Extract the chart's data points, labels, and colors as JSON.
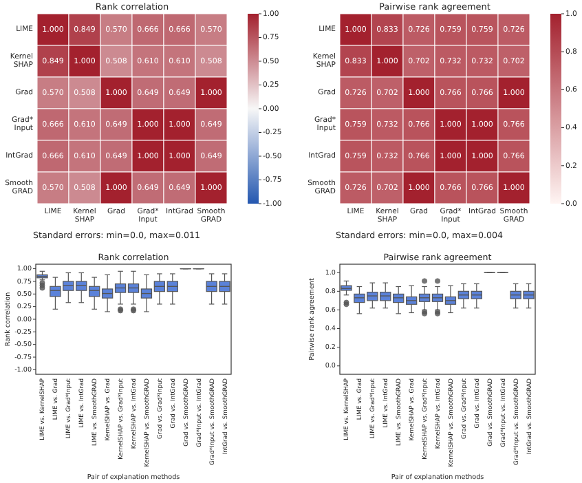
{
  "chart_data": [
    {
      "type": "heatmap",
      "title": "Rank correlation",
      "categories": [
        "LIME",
        "Kernel SHAP",
        "Grad",
        "Grad* Input",
        "IntGrad",
        "Smooth GRAD"
      ],
      "y_categories": [
        "LIME",
        "Kernel SHAP",
        "Grad",
        "Grad* Input",
        "IntGrad",
        "Smooth GRAD"
      ],
      "cells": [
        [
          1.0,
          0.849,
          0.57,
          0.666,
          0.666,
          0.57
        ],
        [
          0.849,
          1.0,
          0.508,
          0.61,
          0.61,
          0.508
        ],
        [
          0.57,
          0.508,
          1.0,
          0.649,
          0.649,
          1.0
        ],
        [
          0.666,
          0.61,
          0.649,
          1.0,
          1.0,
          0.649
        ],
        [
          0.666,
          0.61,
          0.649,
          1.0,
          1.0,
          0.649
        ],
        [
          0.57,
          0.508,
          1.0,
          0.649,
          0.649,
          1.0
        ]
      ],
      "cell_labels": [
        [
          "1.000",
          "0.849",
          "0.570",
          "0.666",
          "0.666",
          "0.570"
        ],
        [
          "0.849",
          "1.000",
          "0.508",
          "0.610",
          "0.610",
          "0.508"
        ],
        [
          "0.570",
          "0.508",
          "1.000",
          "0.649",
          "0.649",
          "1.000"
        ],
        [
          "0.666",
          "0.610",
          "0.649",
          "1.000",
          "1.000",
          "0.649"
        ],
        [
          "0.666",
          "0.610",
          "0.649",
          "1.000",
          "1.000",
          "0.649"
        ],
        [
          "0.570",
          "0.508",
          "1.000",
          "0.649",
          "0.649",
          "1.000"
        ]
      ],
      "clim": [
        -1,
        1
      ],
      "cticks": [
        {
          "value": -1,
          "label": "-1.00"
        },
        {
          "value": -0.75,
          "label": "-0.75"
        },
        {
          "value": -0.5,
          "label": "-0.50"
        },
        {
          "value": -0.25,
          "label": "-0.25"
        },
        {
          "value": 0,
          "label": "0.00"
        },
        {
          "value": 0.25,
          "label": "0.25"
        },
        {
          "value": 0.5,
          "label": "0.50"
        },
        {
          "value": 0.75,
          "label": "0.75"
        },
        {
          "value": 1,
          "label": "1.00"
        }
      ],
      "annotations": [
        "Standard errors: min=0.0, max=0.011"
      ]
    },
    {
      "type": "heatmap",
      "title": "Pairwise rank agreement",
      "categories": [
        "LIME",
        "Kernel SHAP",
        "Grad",
        "Grad* Input",
        "IntGrad",
        "Smooth GRAD"
      ],
      "y_categories": [
        "LIME",
        "Kernel SHAP",
        "Grad",
        "Grad* Input",
        "IntGrad",
        "Smooth GRAD"
      ],
      "cells": [
        [
          1.0,
          0.833,
          0.726,
          0.759,
          0.759,
          0.726
        ],
        [
          0.833,
          1.0,
          0.702,
          0.732,
          0.732,
          0.702
        ],
        [
          0.726,
          0.702,
          1.0,
          0.766,
          0.766,
          1.0
        ],
        [
          0.759,
          0.732,
          0.766,
          1.0,
          1.0,
          0.766
        ],
        [
          0.759,
          0.732,
          0.766,
          1.0,
          1.0,
          0.766
        ],
        [
          0.726,
          0.702,
          1.0,
          0.766,
          0.766,
          1.0
        ]
      ],
      "cell_labels": [
        [
          "1.000",
          "0.833",
          "0.726",
          "0.759",
          "0.759",
          "0.726"
        ],
        [
          "0.833",
          "1.000",
          "0.702",
          "0.732",
          "0.732",
          "0.702"
        ],
        [
          "0.726",
          "0.702",
          "1.000",
          "0.766",
          "0.766",
          "1.000"
        ],
        [
          "0.759",
          "0.732",
          "0.766",
          "1.000",
          "1.000",
          "0.766"
        ],
        [
          "0.759",
          "0.732",
          "0.766",
          "1.000",
          "1.000",
          "0.766"
        ],
        [
          "0.726",
          "0.702",
          "1.000",
          "0.766",
          "0.766",
          "1.000"
        ]
      ],
      "clim": [
        0,
        1
      ],
      "cticks": [
        {
          "value": 0,
          "label": "0.0"
        },
        {
          "value": 0.2,
          "label": "0.2"
        },
        {
          "value": 0.4,
          "label": "0.4"
        },
        {
          "value": 0.6,
          "label": "0.6"
        },
        {
          "value": 0.8,
          "label": "0.8"
        },
        {
          "value": 1,
          "label": "1.0"
        }
      ],
      "annotations": [
        "Standard errors: min=0.0, max=0.004"
      ]
    },
    {
      "type": "box",
      "title": "Rank correlation",
      "xlabel": "Pair of explanation methods",
      "ylabel": "Rank correlation",
      "color": "#5b82d9",
      "categories": [
        "LIME vs. KernelSHAP",
        "LIME vs. Grad",
        "LIME vs. Grad*Input",
        "LIME vs. IntGrad",
        "LIME vs. SmoothGRAD",
        "KernelSHAP vs. Grad",
        "KernelSHAP vs. Grad*Input",
        "KernelSHAP vs. IntGrad",
        "KernelSHAP vs. SmoothGRAD",
        "Grad vs. Grad*Input",
        "Grad vs. IntGrad",
        "Grad vs. SmoothGRAD",
        "Grad*Input vs. IntGrad",
        "Grad*Input vs. SmoothGRAD",
        "IntGrad vs. SmoothGRAD"
      ],
      "boxes": [
        {
          "low": 0.78,
          "q1": 0.82,
          "median": 0.85,
          "q3": 0.88,
          "high": 0.95,
          "outliers": [
            0.72,
            0.67,
            0.62
          ]
        },
        {
          "low": 0.2,
          "q1": 0.45,
          "median": 0.57,
          "q3": 0.65,
          "high": 0.83
        },
        {
          "low": 0.33,
          "q1": 0.57,
          "median": 0.67,
          "q3": 0.75,
          "high": 0.92
        },
        {
          "low": 0.33,
          "q1": 0.57,
          "median": 0.67,
          "q3": 0.75,
          "high": 0.92
        },
        {
          "low": 0.2,
          "q1": 0.45,
          "median": 0.57,
          "q3": 0.65,
          "high": 0.83
        },
        {
          "low": 0.15,
          "q1": 0.42,
          "median": 0.51,
          "q3": 0.6,
          "high": 0.88
        },
        {
          "low": 0.3,
          "q1": 0.53,
          "median": 0.62,
          "q3": 0.7,
          "high": 0.95,
          "outliers": [
            0.2,
            0.17
          ]
        },
        {
          "low": 0.3,
          "q1": 0.53,
          "median": 0.62,
          "q3": 0.7,
          "high": 0.95,
          "outliers": [
            0.2,
            0.17
          ]
        },
        {
          "low": 0.15,
          "q1": 0.42,
          "median": 0.51,
          "q3": 0.6,
          "high": 0.88
        },
        {
          "low": 0.3,
          "q1": 0.55,
          "median": 0.65,
          "q3": 0.75,
          "high": 0.9
        },
        {
          "low": 0.3,
          "q1": 0.55,
          "median": 0.65,
          "q3": 0.75,
          "high": 0.9
        },
        {
          "low": 1.0,
          "q1": 1.0,
          "median": 1.0,
          "q3": 1.0,
          "high": 1.0
        },
        {
          "low": 1.0,
          "q1": 1.0,
          "median": 1.0,
          "q3": 1.0,
          "high": 1.0
        },
        {
          "low": 0.3,
          "q1": 0.55,
          "median": 0.65,
          "q3": 0.75,
          "high": 0.9
        },
        {
          "low": 0.3,
          "q1": 0.55,
          "median": 0.65,
          "q3": 0.75,
          "high": 0.9
        }
      ],
      "ylim": [
        -1.09,
        1.09
      ],
      "yticks": [
        {
          "value": -1,
          "label": "-1.00"
        },
        {
          "value": -0.75,
          "label": "-0.75"
        },
        {
          "value": -0.5,
          "label": "-0.50"
        },
        {
          "value": -0.25,
          "label": "-0.25"
        },
        {
          "value": 0,
          "label": "0.00"
        },
        {
          "value": 0.25,
          "label": "0.25"
        },
        {
          "value": 0.5,
          "label": "0.50"
        },
        {
          "value": 0.75,
          "label": "0.75"
        },
        {
          "value": 1,
          "label": "1.00"
        }
      ]
    },
    {
      "type": "box",
      "title": "Pairwise rank agreement",
      "xlabel": "Pair of explanation methods",
      "ylabel": "Pairwise rank agreement",
      "color": "#5b82d9",
      "categories": [
        "LIME vs. KernelSHAP",
        "LIME vs. Grad",
        "LIME vs. Grad*Input",
        "LIME vs. IntGrad",
        "LIME vs. SmoothGRAD",
        "KernelSHAP vs. Grad",
        "KernelSHAP vs. Grad*Input",
        "KernelSHAP vs. IntGrad",
        "KernelSHAP vs. SmoothGRAD",
        "Grad vs. Grad*Input",
        "Grad vs. IntGrad",
        "Grad vs. SmoothGRAD",
        "Grad*Input vs. IntGrad",
        "Grad*Input vs. SmoothGRAD",
        "IntGrad vs. SmoothGRAD"
      ],
      "boxes": [
        {
          "low": 0.76,
          "q1": 0.81,
          "median": 0.83,
          "q3": 0.86,
          "high": 0.91,
          "outliers": [
            0.68,
            0.66
          ]
        },
        {
          "low": 0.56,
          "q1": 0.68,
          "median": 0.73,
          "q3": 0.77,
          "high": 0.85
        },
        {
          "low": 0.62,
          "q1": 0.7,
          "median": 0.75,
          "q3": 0.79,
          "high": 0.89
        },
        {
          "low": 0.62,
          "q1": 0.7,
          "median": 0.75,
          "q3": 0.79,
          "high": 0.89
        },
        {
          "low": 0.56,
          "q1": 0.68,
          "median": 0.73,
          "q3": 0.77,
          "high": 0.85
        },
        {
          "low": 0.57,
          "q1": 0.66,
          "median": 0.7,
          "q3": 0.74,
          "high": 0.86
        },
        {
          "low": 0.6,
          "q1": 0.69,
          "median": 0.73,
          "q3": 0.77,
          "high": 0.85,
          "outliers": [
            0.91,
            0.58,
            0.56
          ]
        },
        {
          "low": 0.6,
          "q1": 0.69,
          "median": 0.73,
          "q3": 0.77,
          "high": 0.85,
          "outliers": [
            0.91,
            0.58,
            0.56
          ]
        },
        {
          "low": 0.57,
          "q1": 0.66,
          "median": 0.7,
          "q3": 0.74,
          "high": 0.86
        },
        {
          "low": 0.62,
          "q1": 0.72,
          "median": 0.76,
          "q3": 0.8,
          "high": 0.88
        },
        {
          "low": 0.62,
          "q1": 0.72,
          "median": 0.76,
          "q3": 0.8,
          "high": 0.88
        },
        {
          "low": 1.0,
          "q1": 1.0,
          "median": 1.0,
          "q3": 1.0,
          "high": 1.0
        },
        {
          "low": 1.0,
          "q1": 1.0,
          "median": 1.0,
          "q3": 1.0,
          "high": 1.0
        },
        {
          "low": 0.62,
          "q1": 0.72,
          "median": 0.76,
          "q3": 0.8,
          "high": 0.88
        },
        {
          "low": 0.62,
          "q1": 0.72,
          "median": 0.76,
          "q3": 0.8,
          "high": 0.88
        }
      ],
      "ylim": [
        -0.09,
        1.09
      ],
      "yticks": [
        {
          "value": 0,
          "label": "0.0"
        },
        {
          "value": 0.2,
          "label": "0.2"
        },
        {
          "value": 0.4,
          "label": "0.4"
        },
        {
          "value": 0.6,
          "label": "0.6"
        },
        {
          "value": 0.8,
          "label": "0.8"
        },
        {
          "value": 1,
          "label": "1.0"
        }
      ]
    }
  ]
}
